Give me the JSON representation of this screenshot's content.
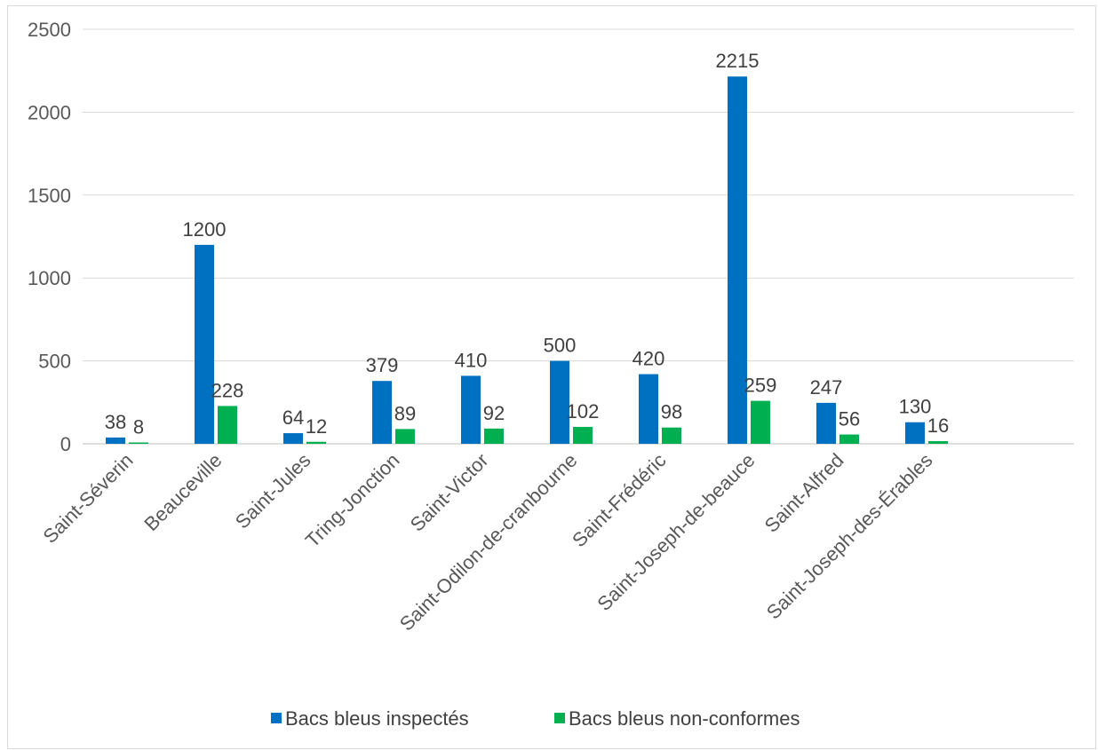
{
  "chart_data": {
    "type": "bar",
    "categories": [
      "Saint-Séverin",
      "Beauceville",
      "Saint-Jules",
      "Tring-Jonction",
      "Saint-Victor",
      "Saint-Odilon-de-cranbourne",
      "Saint-Frédéric",
      "Saint-Joseph-de-beauce",
      "Saint-Alfred",
      "Saint-Joseph-des-Érables"
    ],
    "series": [
      {
        "name": "Bacs bleus inspectés",
        "color": "#0070C0",
        "values": [
          38,
          1200,
          64,
          379,
          410,
          500,
          420,
          2215,
          247,
          130
        ]
      },
      {
        "name": "Bacs bleus non-conformes",
        "color": "#00B050",
        "values": [
          8,
          228,
          12,
          89,
          92,
          102,
          98,
          259,
          56,
          16
        ]
      }
    ],
    "ylim": [
      0,
      2500
    ],
    "yticks": [
      0,
      500,
      1000,
      1500,
      2000,
      2500
    ],
    "grid": true,
    "legend": "bottom",
    "data_labels": true
  }
}
